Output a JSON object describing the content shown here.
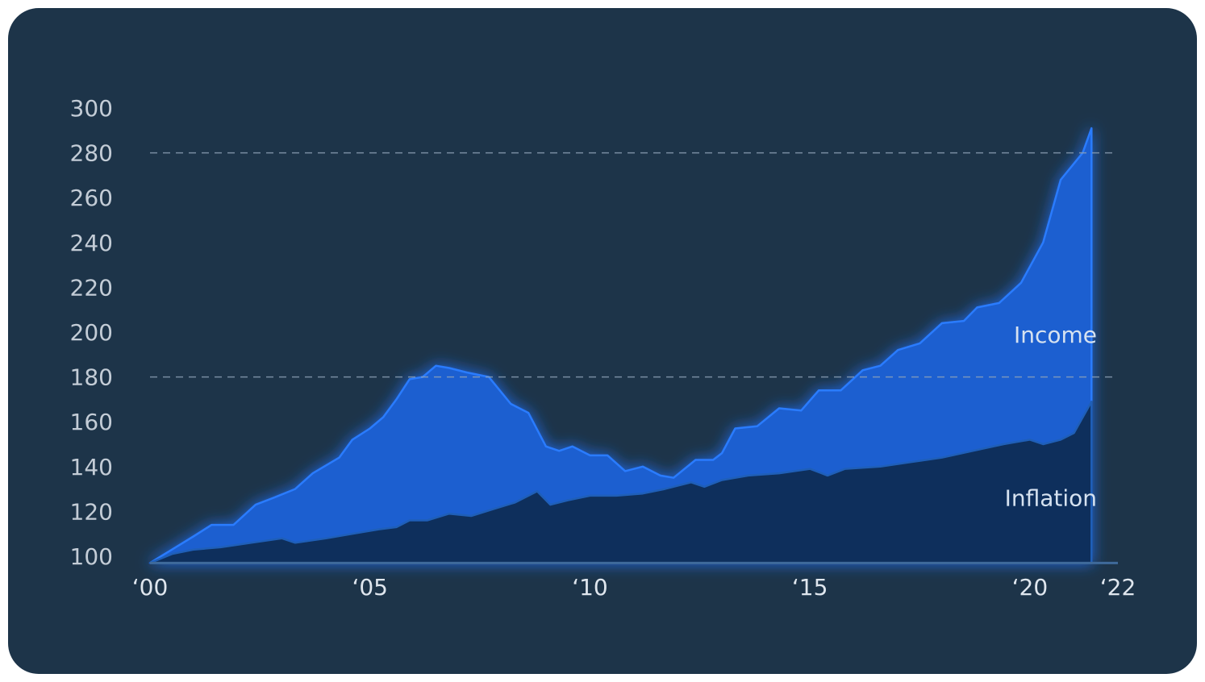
{
  "chart_data": {
    "type": "area",
    "ylim": [
      100,
      300
    ],
    "xlim": [
      2000,
      2022
    ],
    "y_ticks": [
      "100",
      "120",
      "140",
      "160",
      "180",
      "200",
      "220",
      "240",
      "260",
      "280",
      "300"
    ],
    "x_ticks": [
      {
        "x": 2000,
        "label": "‘00"
      },
      {
        "x": 2005,
        "label": "‘05"
      },
      {
        "x": 2010,
        "label": "‘10"
      },
      {
        "x": 2015,
        "label": "‘15"
      },
      {
        "x": 2020,
        "label": "‘20"
      },
      {
        "x": 2022,
        "label": "‘22"
      }
    ],
    "reference_lines": [
      180,
      280
    ],
    "series": [
      {
        "name": "Income",
        "color": "#1a5fd0",
        "line_color": "#2b7bff",
        "points": [
          [
            2000.0,
            97
          ],
          [
            2000.5,
            103
          ],
          [
            2001.0,
            109
          ],
          [
            2001.4,
            114
          ],
          [
            2001.9,
            114
          ],
          [
            2002.4,
            123
          ],
          [
            2002.8,
            126
          ],
          [
            2003.3,
            130
          ],
          [
            2003.7,
            137
          ],
          [
            2004.3,
            144
          ],
          [
            2004.6,
            152
          ],
          [
            2005.0,
            157
          ],
          [
            2005.3,
            162
          ],
          [
            2005.6,
            170
          ],
          [
            2005.9,
            179
          ],
          [
            2006.2,
            180
          ],
          [
            2006.5,
            185
          ],
          [
            2006.8,
            184
          ],
          [
            2007.2,
            182
          ],
          [
            2007.7,
            180
          ],
          [
            2008.2,
            168
          ],
          [
            2008.6,
            164
          ],
          [
            2009.0,
            149
          ],
          [
            2009.3,
            147
          ],
          [
            2009.6,
            149
          ],
          [
            2010.0,
            145
          ],
          [
            2010.4,
            145
          ],
          [
            2010.8,
            138
          ],
          [
            2011.2,
            140
          ],
          [
            2011.6,
            136
          ],
          [
            2011.9,
            135
          ],
          [
            2012.4,
            143
          ],
          [
            2012.8,
            143
          ],
          [
            2013.0,
            146
          ],
          [
            2013.3,
            157
          ],
          [
            2013.8,
            158
          ],
          [
            2014.3,
            166
          ],
          [
            2014.8,
            165
          ],
          [
            2015.2,
            174
          ],
          [
            2015.7,
            174
          ],
          [
            2016.2,
            183
          ],
          [
            2016.6,
            185
          ],
          [
            2017.0,
            192
          ],
          [
            2017.5,
            195
          ],
          [
            2018.0,
            204
          ],
          [
            2018.5,
            205
          ],
          [
            2018.8,
            211
          ],
          [
            2019.3,
            213
          ],
          [
            2019.8,
            222
          ],
          [
            2020.3,
            240
          ],
          [
            2020.7,
            268
          ],
          [
            2021.2,
            280
          ],
          [
            2021.4,
            291
          ]
        ]
      },
      {
        "name": "Inflation",
        "color": "#0e2f5c",
        "line_color": "#1f5fb8",
        "points": [
          [
            2000.0,
            97
          ],
          [
            2000.5,
            101
          ],
          [
            2001.0,
            103
          ],
          [
            2001.6,
            104
          ],
          [
            2002.3,
            106
          ],
          [
            2003.0,
            108
          ],
          [
            2003.3,
            106
          ],
          [
            2004.0,
            108
          ],
          [
            2004.6,
            110
          ],
          [
            2005.2,
            112
          ],
          [
            2005.6,
            113
          ],
          [
            2005.9,
            116
          ],
          [
            2006.3,
            116
          ],
          [
            2006.8,
            119
          ],
          [
            2007.3,
            118
          ],
          [
            2007.8,
            121
          ],
          [
            2008.3,
            124
          ],
          [
            2008.8,
            129
          ],
          [
            2009.1,
            123
          ],
          [
            2009.5,
            125
          ],
          [
            2010.0,
            127
          ],
          [
            2010.6,
            127
          ],
          [
            2011.2,
            128
          ],
          [
            2011.7,
            130
          ],
          [
            2012.3,
            133
          ],
          [
            2012.6,
            131
          ],
          [
            2013.0,
            134
          ],
          [
            2013.6,
            136
          ],
          [
            2014.3,
            137
          ],
          [
            2015.0,
            139
          ],
          [
            2015.4,
            136
          ],
          [
            2015.8,
            139
          ],
          [
            2016.6,
            140
          ],
          [
            2017.3,
            142
          ],
          [
            2018.0,
            144
          ],
          [
            2018.7,
            147
          ],
          [
            2019.4,
            150
          ],
          [
            2020.0,
            152
          ],
          [
            2020.3,
            150
          ],
          [
            2020.7,
            152
          ],
          [
            2021.0,
            155
          ],
          [
            2021.4,
            169
          ]
        ]
      }
    ],
    "series_labels": [
      {
        "text": "Income",
        "y": 199
      },
      {
        "text": "Inflation",
        "y": 126
      }
    ]
  }
}
